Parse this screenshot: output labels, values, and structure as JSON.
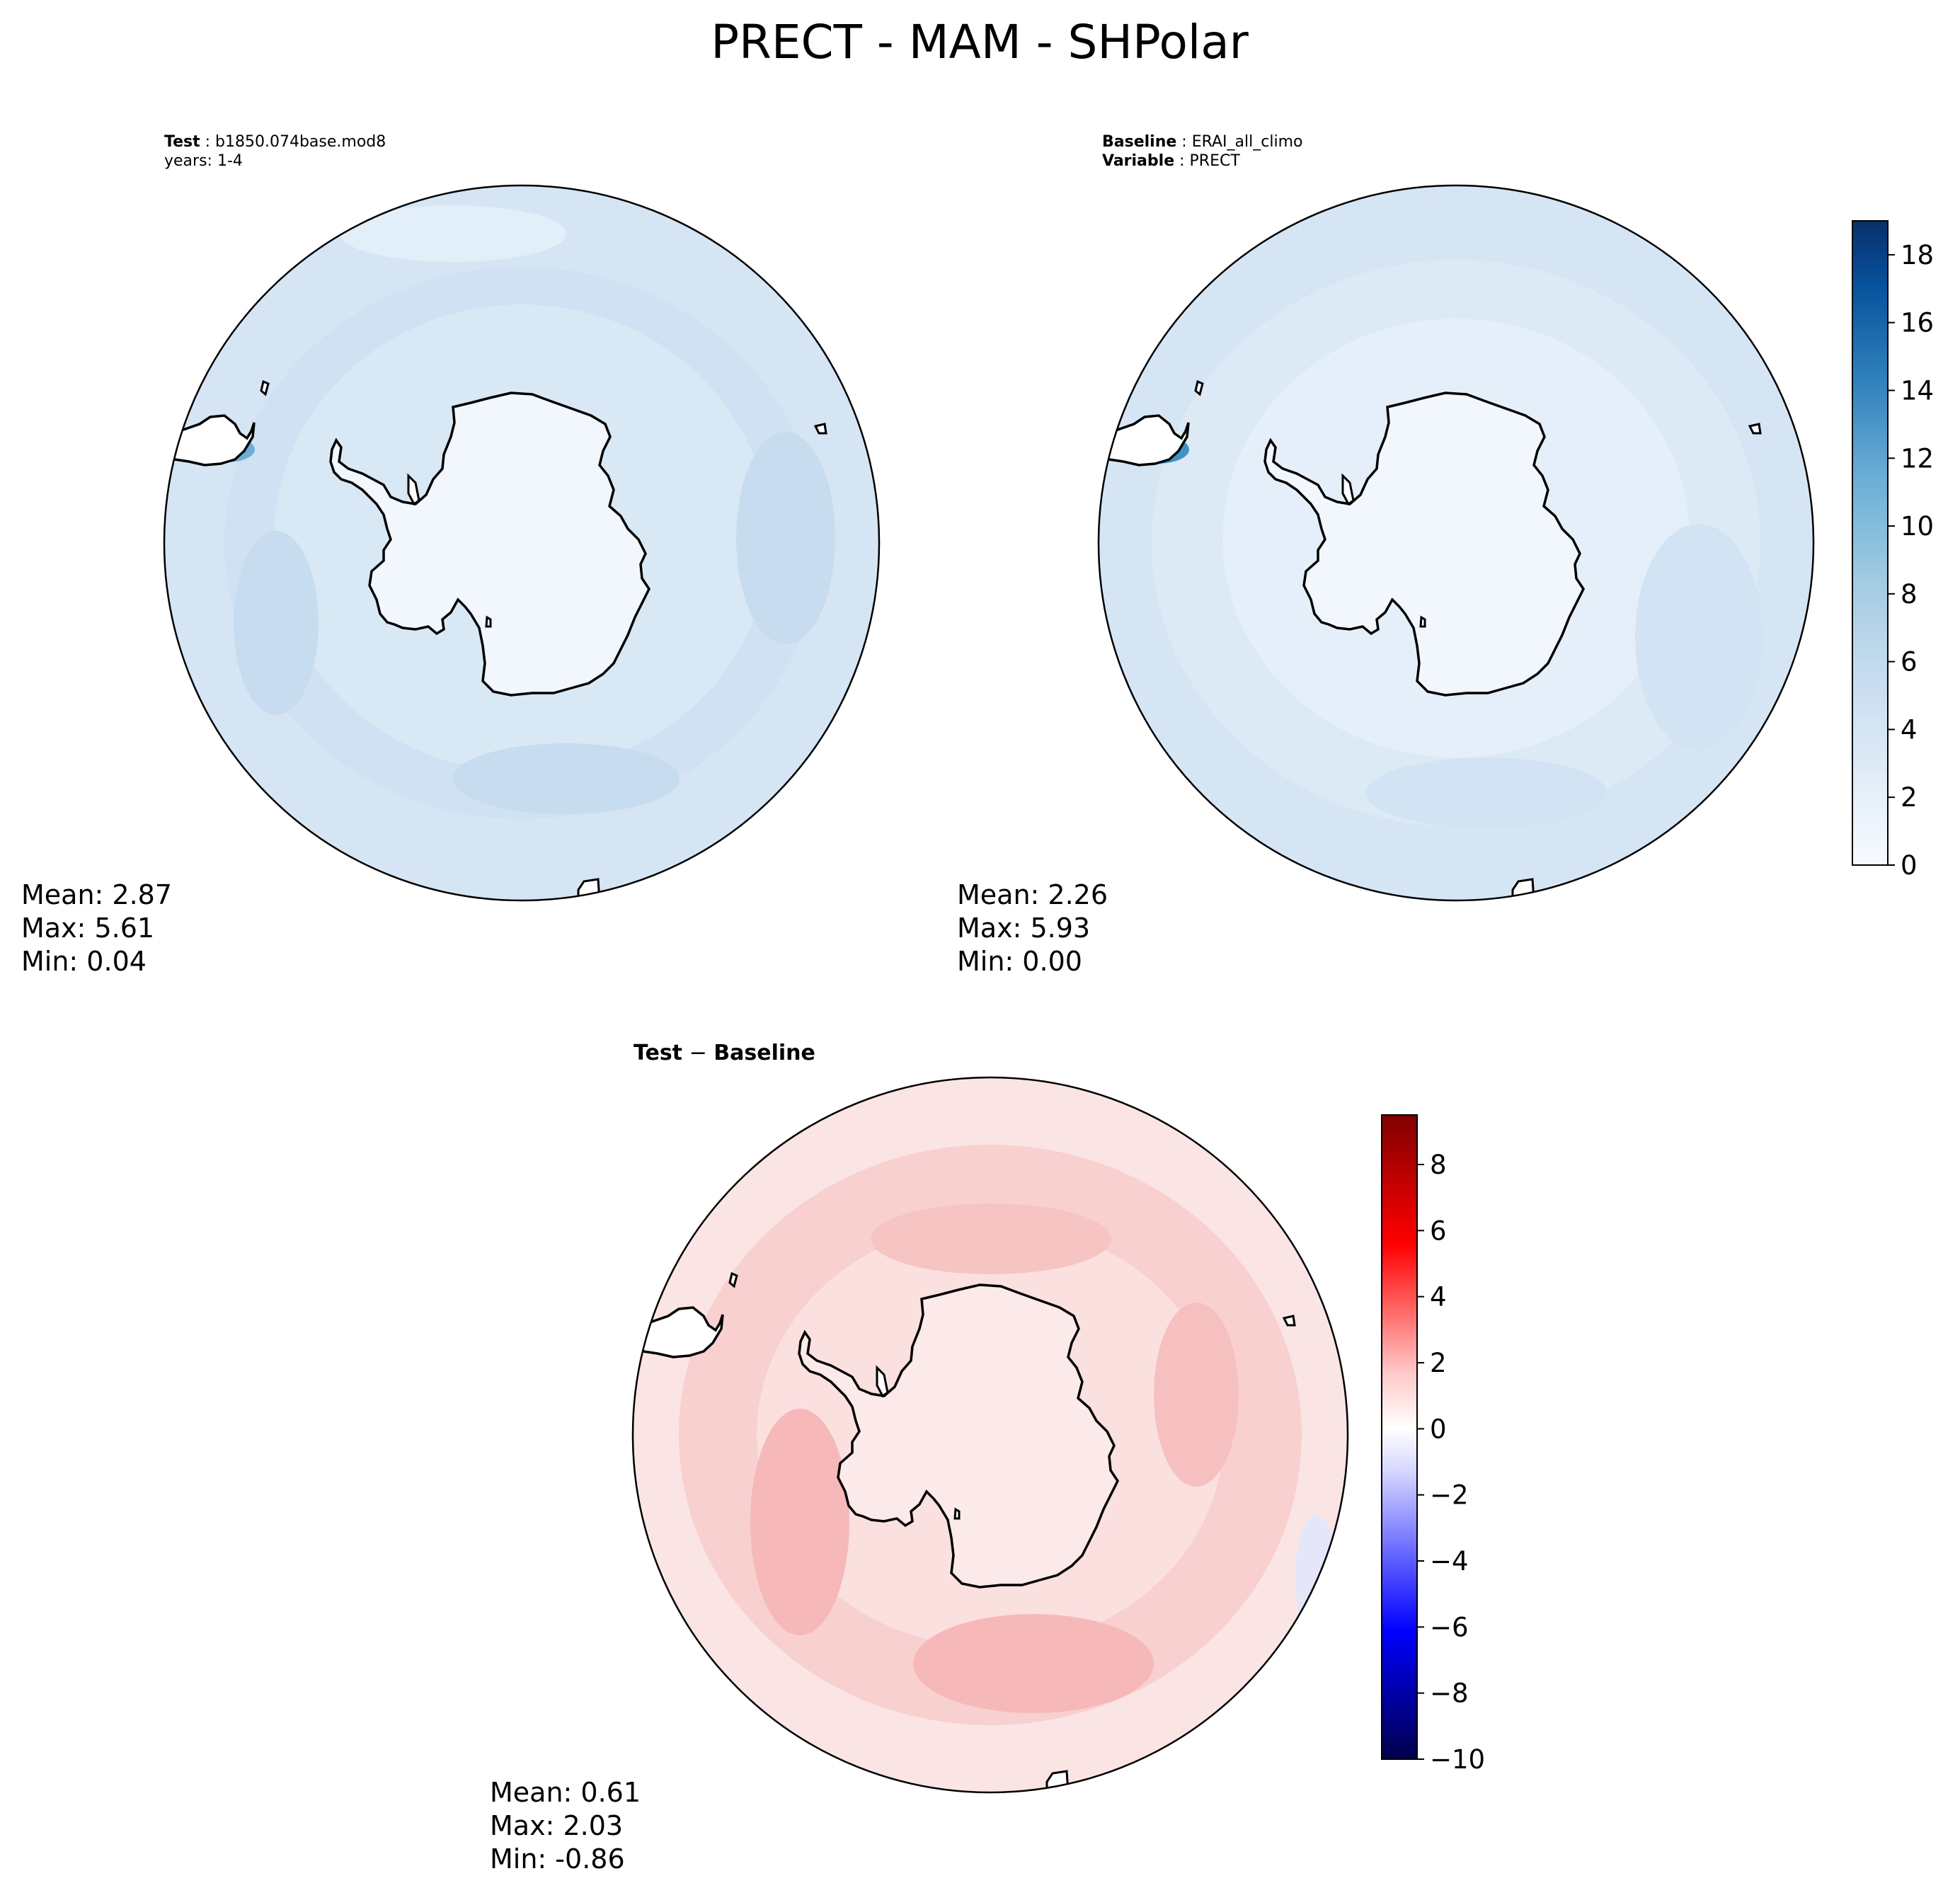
{
  "figure": {
    "title": "PRECT - MAM - SHPolar"
  },
  "colors": {
    "ocean_test": "#d6e5f4",
    "ocean_base": "#dceaf6",
    "land": "#f2f7fd",
    "diff_ocean": "#f9d2d2",
    "diff_land": "#fbe9e9",
    "outline": "#000000"
  },
  "chart_data": [
    {
      "type": "heatmap",
      "projection": "south-polar-stereographic",
      "label_key": "Test",
      "label_value": "b1850.074base.mod8",
      "label_line2": "years: 1-4",
      "stats": {
        "mean": "Mean:  2.87",
        "max": "Max:  5.61",
        "min": "Min:  0.04"
      },
      "colormap": "Blues"
    },
    {
      "type": "heatmap",
      "projection": "south-polar-stereographic",
      "label_key": "Baseline",
      "label_value": "ERAI_all_climo",
      "label_key2": "Variable",
      "label_value2": "PRECT",
      "stats": {
        "mean": "Mean:  2.26",
        "max": "Max:  5.93",
        "min": "Min:  0.00"
      },
      "colormap": "Blues",
      "colorbar": {
        "ticks": [
          "0",
          "2",
          "4",
          "6",
          "8",
          "10",
          "12",
          "14",
          "16",
          "18"
        ],
        "range": [
          0,
          19
        ]
      }
    },
    {
      "type": "heatmap",
      "projection": "south-polar-stereographic",
      "label_key": "Test",
      "label_op": "−",
      "label_value": "Baseline",
      "stats": {
        "mean": "Mean:  0.61",
        "max": "Max:  2.03",
        "min": "Min: -0.86"
      },
      "colormap": "seismic",
      "colorbar": {
        "ticks": [
          "−10",
          "−8",
          "−6",
          "−4",
          "−2",
          "0",
          "2",
          "4",
          "6",
          "8"
        ],
        "range": [
          -10,
          9.5
        ]
      }
    }
  ]
}
